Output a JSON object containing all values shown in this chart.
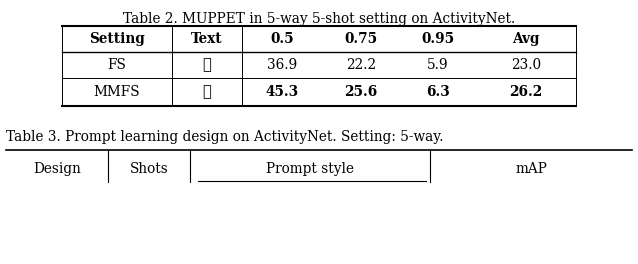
{
  "table2_title": "Table 2. MUPPET in 5-way 5-shot setting on ActivityNet.",
  "table2_headers": [
    "Setting",
    "Text",
    "0.5",
    "0.75",
    "0.95",
    "Avg"
  ],
  "table2_row1": [
    "FS",
    "✗",
    "36.9",
    "22.2",
    "5.9",
    "23.0"
  ],
  "table2_row2": [
    "MMFS",
    "✓",
    "45.3",
    "25.6",
    "6.3",
    "26.2"
  ],
  "table3_title": "Table 3. Prompt learning design on ActivityNet. Setting: 5-way.",
  "table3_headers": [
    "Design",
    "Shots",
    "Prompt style",
    "mAP"
  ],
  "bg_color": "#ffffff",
  "text_color": "#000000",
  "title2_fontsize": 9.8,
  "header_fontsize": 9.8,
  "cell_fontsize": 9.8,
  "title3_fontsize": 9.8,
  "t3_header_fontsize": 9.8
}
